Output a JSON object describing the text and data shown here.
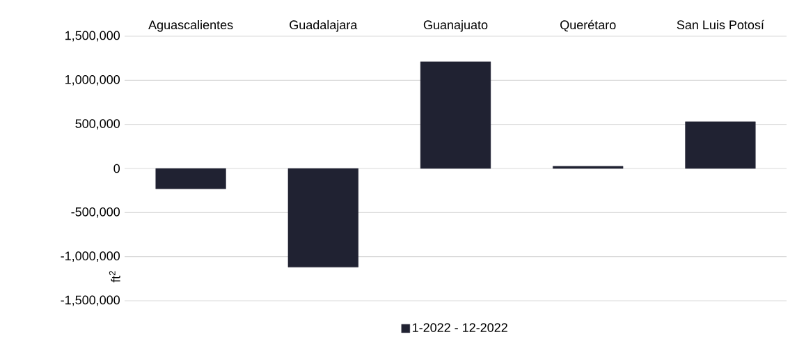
{
  "chart_data": {
    "type": "bar",
    "categories": [
      "Aguascalientes",
      "Guadalajara",
      "Guanajuato",
      "Querétaro",
      "San Luis Potosí"
    ],
    "series": [
      {
        "name": "1-2022 - 12-2022",
        "color": "#202232",
        "values": [
          -230000,
          -1120000,
          1210000,
          25000,
          530000
        ]
      }
    ],
    "ylabel": "ft$^{2}$",
    "ylim": [
      -1500000,
      1500000
    ],
    "yticks": [
      {
        "value": -1500000,
        "label": "-1,500,000"
      },
      {
        "value": -1000000,
        "label": "-1,000,000"
      },
      {
        "value": -500000,
        "label": "-500,000"
      },
      {
        "value": 0,
        "label": "0"
      },
      {
        "value": 500000,
        "label": "500,000"
      },
      {
        "value": 1000000,
        "label": "1,000,000"
      },
      {
        "value": 1500000,
        "label": "1,500,000"
      }
    ],
    "grid": "y",
    "legend": "bottom"
  }
}
